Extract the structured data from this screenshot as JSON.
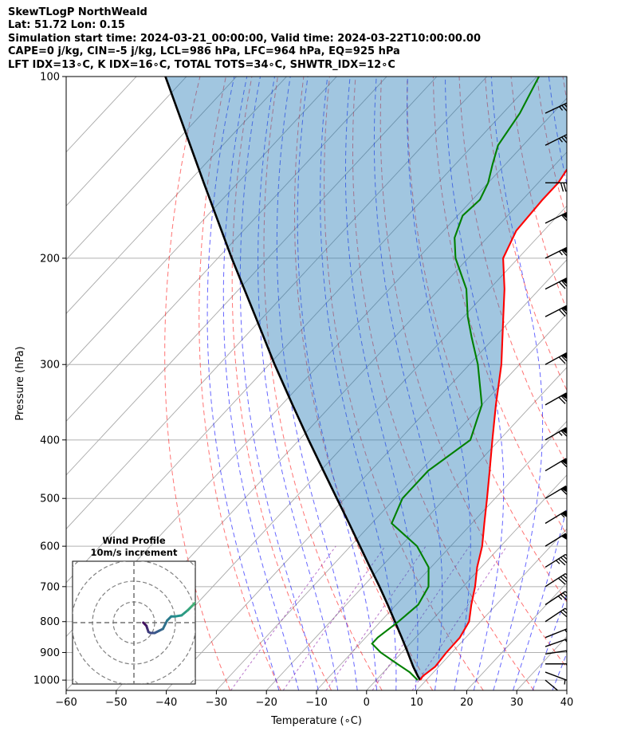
{
  "header": {
    "line1": "SkewTLogP NorthWeald",
    "line2": "Lat: 51.72   Lon: 0.15",
    "line3": "Simulation start time: 2024-03-21_00:00:00, Valid time: 2024-03-22T10:00:00.00",
    "line4": "CAPE=0 j/kg, CIN=-5 j/kg, LCL=986 hPa, LFC=964 hPa, EQ=925 hPa",
    "line5": "LFT IDX=13∘C, K IDX=16∘C, TOTAL TOTS=34∘C, SHWTR_IDX=12∘C"
  },
  "chart_data": {
    "type": "line",
    "xlabel": "Temperature (∘C)",
    "ylabel": "Pressure (hPa)",
    "xlim": [
      -60,
      40
    ],
    "ylim": [
      1040,
      100
    ],
    "yscale": "log",
    "skew": true,
    "x_ticks": [
      "−60",
      "−50",
      "−40",
      "−30",
      "−20",
      "−10",
      "0",
      "10",
      "20",
      "30",
      "40"
    ],
    "x_tick_values": [
      -60,
      -50,
      -40,
      -30,
      -20,
      -10,
      0,
      10,
      20,
      30,
      40
    ],
    "y_ticks": [
      "100",
      "200",
      "300",
      "400",
      "500",
      "600",
      "700",
      "800",
      "900",
      "1000"
    ],
    "y_tick_values": [
      100,
      200,
      300,
      400,
      500,
      600,
      700,
      800,
      900,
      1000
    ],
    "series": [
      {
        "role": "temperature",
        "color": "#ff0000",
        "points": [
          [
            1000,
            8.8
          ],
          [
            985,
            8.6
          ],
          [
            950,
            9.3
          ],
          [
            900,
            8.9
          ],
          [
            850,
            8.8
          ],
          [
            800,
            7.7
          ],
          [
            750,
            5.0
          ],
          [
            700,
            2.4
          ],
          [
            650,
            -0.8
          ],
          [
            600,
            -3.7
          ],
          [
            550,
            -7.5
          ],
          [
            500,
            -11.6
          ],
          [
            450,
            -16.2
          ],
          [
            400,
            -21.4
          ],
          [
            350,
            -27.2
          ],
          [
            300,
            -33.6
          ],
          [
            250,
            -42.1
          ],
          [
            225,
            -47.0
          ],
          [
            200,
            -53.0
          ],
          [
            180,
            -55.5
          ],
          [
            160,
            -56.0
          ],
          [
            150,
            -56.0
          ],
          [
            140,
            -57.0
          ],
          [
            130,
            -59.8
          ],
          [
            120,
            -62.7
          ],
          [
            110,
            -64.8
          ],
          [
            100,
            -67.5
          ]
        ]
      },
      {
        "role": "dewpoint",
        "color": "#008000",
        "points": [
          [
            1000,
            8.3
          ],
          [
            970,
            5.2
          ],
          [
            940,
            1.2
          ],
          [
            900,
            -4.2
          ],
          [
            870,
            -7.6
          ],
          [
            850,
            -7.6
          ],
          [
            800,
            -6.4
          ],
          [
            750,
            -5.6
          ],
          [
            700,
            -6.9
          ],
          [
            650,
            -10.5
          ],
          [
            600,
            -16.7
          ],
          [
            550,
            -26.0
          ],
          [
            500,
            -28.5
          ],
          [
            450,
            -28.5
          ],
          [
            400,
            -25.8
          ],
          [
            350,
            -30.0
          ],
          [
            300,
            -38.3
          ],
          [
            270,
            -44.7
          ],
          [
            250,
            -49.2
          ],
          [
            225,
            -54.6
          ],
          [
            200,
            -62.5
          ],
          [
            185,
            -66.5
          ],
          [
            170,
            -69.0
          ],
          [
            160,
            -68.5
          ],
          [
            150,
            -70.0
          ],
          [
            140,
            -72.5
          ],
          [
            130,
            -75.0
          ],
          [
            115,
            -76.6
          ],
          [
            100,
            -79.6
          ]
        ]
      },
      {
        "role": "parcel",
        "color": "#000000",
        "points": [
          [
            1000,
            8.8
          ],
          [
            985,
            7.6
          ],
          [
            950,
            4.9
          ],
          [
            900,
            1.2
          ],
          [
            850,
            -2.8
          ],
          [
            800,
            -7.1
          ],
          [
            750,
            -11.7
          ],
          [
            700,
            -16.7
          ],
          [
            650,
            -22.2
          ],
          [
            600,
            -28.1
          ],
          [
            550,
            -34.5
          ],
          [
            500,
            -41.6
          ],
          [
            450,
            -49.4
          ],
          [
            400,
            -58.1
          ],
          [
            350,
            -67.8
          ],
          [
            300,
            -78.9
          ],
          [
            250,
            -91.6
          ],
          [
            200,
            -107.2
          ],
          [
            150,
            -126.8
          ],
          [
            100,
            -154.2
          ]
        ]
      }
    ],
    "wind_barbs": [
      {
        "p": 1000,
        "u": 6.0,
        "v": -5.0
      },
      {
        "p": 970,
        "u": 8.0,
        "v": -3.0
      },
      {
        "p": 940,
        "u": 9.0,
        "v": 0.0
      },
      {
        "p": 905,
        "u": 10.0,
        "v": 1.5
      },
      {
        "p": 880,
        "u": 10.0,
        "v": 3.5
      },
      {
        "p": 850,
        "u": 10.0,
        "v": 4.0
      },
      {
        "p": 800,
        "u": 12.0,
        "v": 8.0
      },
      {
        "p": 750,
        "u": 15.0,
        "v": 10.0
      },
      {
        "p": 700,
        "u": 17.0,
        "v": 11.0
      },
      {
        "p": 650,
        "u": 19.0,
        "v": 12.0
      },
      {
        "p": 600,
        "u": 21.0,
        "v": 13.0
      },
      {
        "p": 550,
        "u": 23.0,
        "v": 14.0
      },
      {
        "p": 500,
        "u": 25.0,
        "v": 15.0
      },
      {
        "p": 450,
        "u": 27.0,
        "v": 16.0
      },
      {
        "p": 400,
        "u": 29.0,
        "v": 17.0
      },
      {
        "p": 350,
        "u": 30.0,
        "v": 17.0
      },
      {
        "p": 300,
        "u": 31.0,
        "v": 17.0
      },
      {
        "p": 250,
        "u": 31.0,
        "v": 16.0
      },
      {
        "p": 225,
        "u": 31.0,
        "v": 16.0
      },
      {
        "p": 200,
        "u": 30.0,
        "v": 15.0
      },
      {
        "p": 175,
        "u": 26.0,
        "v": 13.0
      },
      {
        "p": 150,
        "u": 21.0,
        "v": 0.0
      },
      {
        "p": 130,
        "u": 16.0,
        "v": 8.0
      },
      {
        "p": 115,
        "u": 17.0,
        "v": 8.0
      }
    ],
    "hodograph": {
      "title": "Wind Profile",
      "subtitle": "10m/s increment",
      "ring_step": 10,
      "points": [
        [
          4.5,
          0.0
        ],
        [
          6.0,
          -1.5
        ],
        [
          6.5,
          -3.0
        ],
        [
          7.0,
          -4.5
        ],
        [
          8.0,
          -5.0
        ],
        [
          10.0,
          -5.0
        ],
        [
          12.0,
          -4.0
        ],
        [
          14.0,
          -3.0
        ],
        [
          16.0,
          1.0
        ],
        [
          18.0,
          3.0
        ],
        [
          20.0,
          3.0
        ],
        [
          23.0,
          3.5
        ],
        [
          26.0,
          6.0
        ],
        [
          28.0,
          8.0
        ],
        [
          30.0,
          10.0
        ],
        [
          32.0,
          11.0
        ],
        [
          33.0,
          12.0
        ],
        [
          35.0,
          13.0
        ],
        [
          37.0,
          14.0
        ],
        [
          39.0,
          15.0
        ],
        [
          41.0,
          16.0
        ],
        [
          43.0,
          17.0
        ],
        [
          45.0,
          18.0
        ]
      ]
    }
  }
}
